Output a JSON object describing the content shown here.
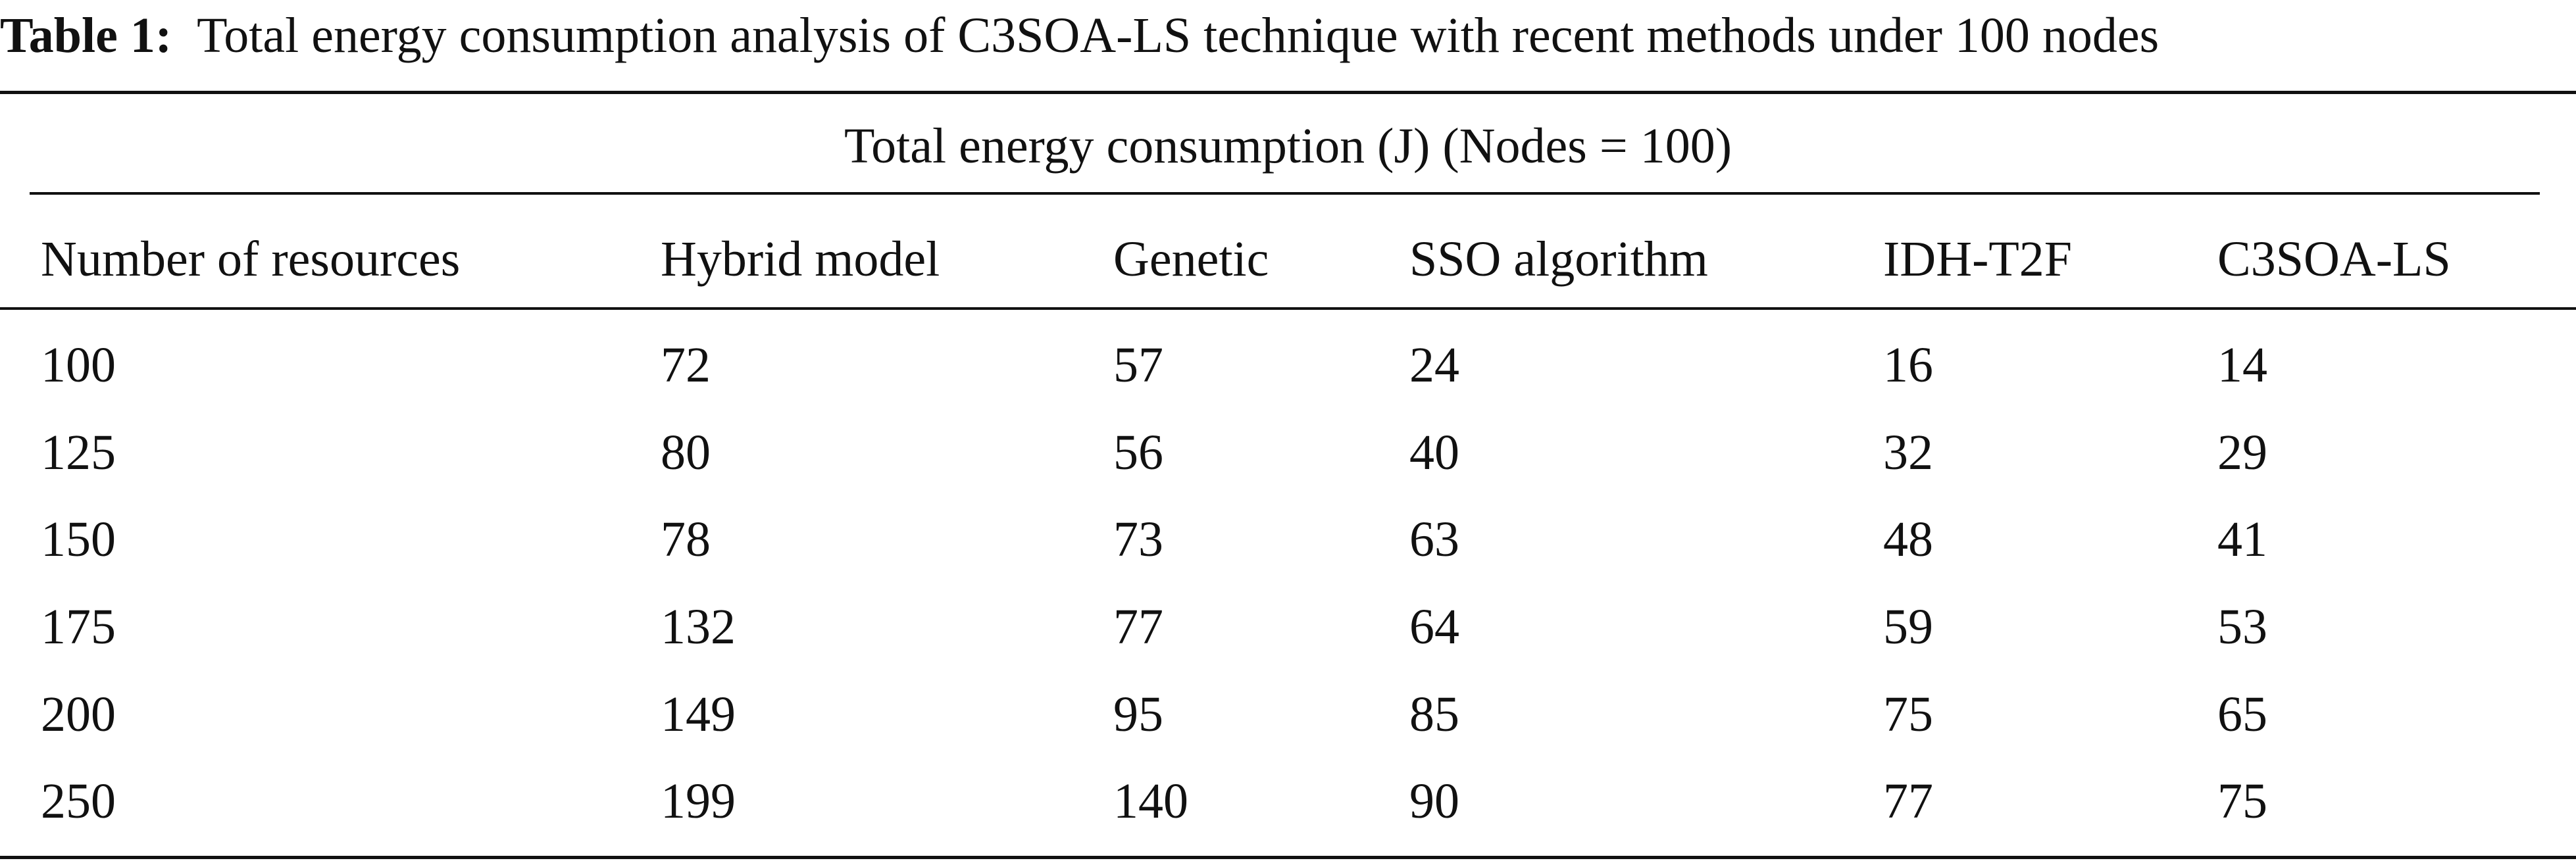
{
  "caption": {
    "label": "Table 1:",
    "text": "Total energy consumption analysis of C3SOA-LS technique with recent methods under 100 nodes"
  },
  "table": {
    "group_header": "Total energy consumption (J) (Nodes = 100)",
    "columns": [
      "Number of resources",
      "Hybrid model",
      "Genetic",
      "SSO algorithm",
      "IDH-T2F",
      "C3SOA-LS"
    ],
    "rows": [
      [
        "100",
        "72",
        "57",
        "24",
        "16",
        "14"
      ],
      [
        "125",
        "80",
        "56",
        "40",
        "32",
        "29"
      ],
      [
        "150",
        "78",
        "73",
        "63",
        "48",
        "41"
      ],
      [
        "175",
        "132",
        "77",
        "64",
        "59",
        "53"
      ],
      [
        "200",
        "149",
        "95",
        "85",
        "75",
        "65"
      ],
      [
        "250",
        "199",
        "140",
        "90",
        "77",
        "75"
      ]
    ]
  }
}
